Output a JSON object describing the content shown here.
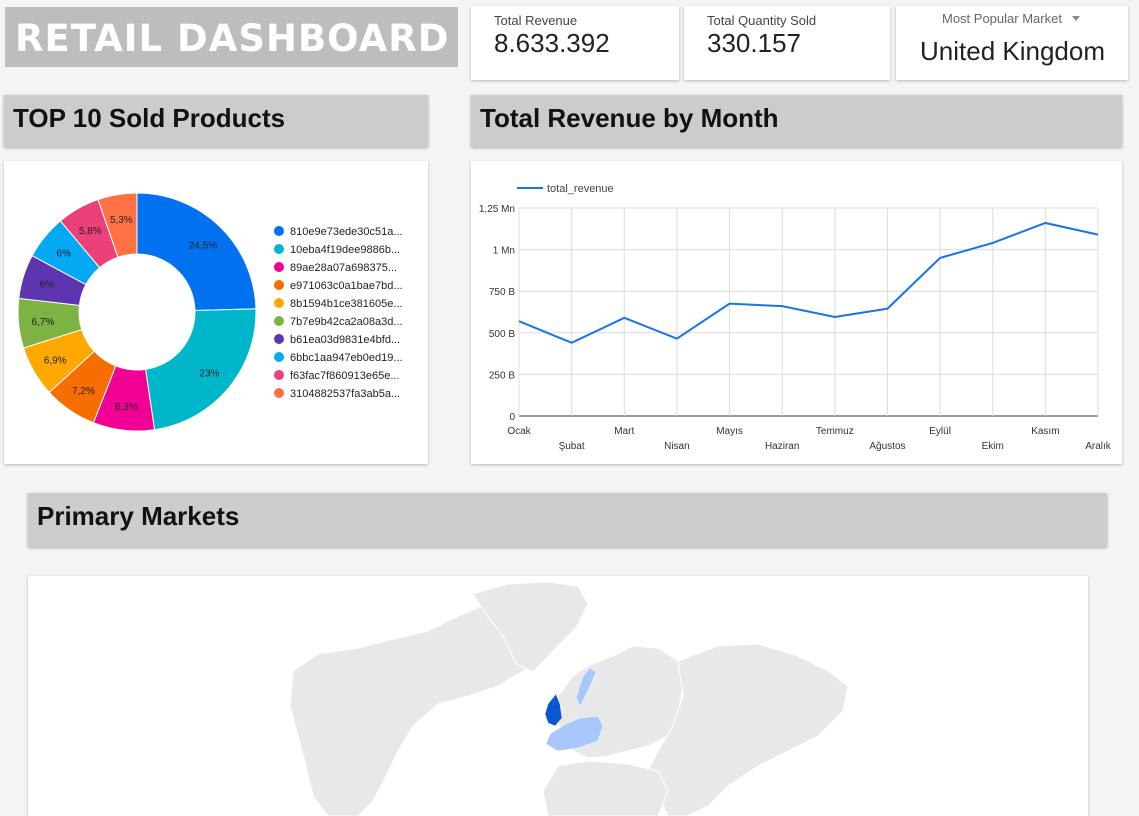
{
  "header": {
    "title": "RETAIL DASHBOARD"
  },
  "kpis": {
    "revenue": {
      "label": "Total Revenue",
      "value": "8.633.392"
    },
    "quantity": {
      "label": "Total Quantity Sold",
      "value": "330.157"
    },
    "market": {
      "label": "Most Popular Market",
      "value": "United Kingdom",
      "dropdown_icon": "triangle-down"
    }
  },
  "sections": {
    "products": "TOP 10 Sold Products",
    "revenue": "Total Revenue by Month",
    "markets": "Primary Markets"
  },
  "donut": {
    "slices": [
      {
        "label": "810e9e73ede30c51a...",
        "value": 24.5,
        "pct": "24,5%",
        "color": "#0072f0"
      },
      {
        "label": "10eba4f19dee9886b...",
        "value": 23,
        "pct": "23%",
        "color": "#00b6cb"
      },
      {
        "label": "89ae28a07a698375...",
        "value": 8.3,
        "pct": "8,3%",
        "color": "#f10096"
      },
      {
        "label": "e971063c0a1bae7bd...",
        "value": 7.2,
        "pct": "7,2%",
        "color": "#f66d00"
      },
      {
        "label": "8b1594b1ce381605e...",
        "value": 6.9,
        "pct": "6,9%",
        "color": "#ffa800"
      },
      {
        "label": "7b7e9b42ca2a08a3d...",
        "value": 6.7,
        "pct": "6,7%",
        "color": "#7cb342"
      },
      {
        "label": "b61ea03d9831e4bfd...",
        "value": 6,
        "pct": "6%",
        "color": "#5e35b1"
      },
      {
        "label": "6bbc1aa947eb0ed19...",
        "value": 6,
        "pct": "6%",
        "color": "#03a9f4"
      },
      {
        "label": "f63fac7f860913e65e...",
        "value": 5.8,
        "pct": "5,8%",
        "color": "#ec407a"
      },
      {
        "label": "3104882537fa3ab5a...",
        "value": 5.3,
        "pct": "5,3%",
        "color": "#ff7043"
      }
    ]
  },
  "chart_data": {
    "type": "line",
    "series": [
      {
        "name": "total_revenue",
        "color": "#1a73e8",
        "values": [
          570000,
          440000,
          590000,
          465000,
          675000,
          660000,
          595000,
          645000,
          950000,
          1040000,
          1160000,
          1090000
        ]
      }
    ],
    "categories": [
      "Ocak",
      "Şubat",
      "Mart",
      "Nisan",
      "Mayıs",
      "Haziran",
      "Temmuz",
      "Ağustos",
      "Eylül",
      "Ekim",
      "Kasım",
      "Aralık"
    ],
    "y_ticks": [
      {
        "value": 0,
        "label": "0"
      },
      {
        "value": 250000,
        "label": "250 B"
      },
      {
        "value": 500000,
        "label": "500 B"
      },
      {
        "value": 750000,
        "label": "750 B"
      },
      {
        "value": 1000000,
        "label": "1 Mn"
      },
      {
        "value": 1250000,
        "label": "1,25 Mn"
      }
    ],
    "ylim": [
      0,
      1250000
    ],
    "grid": true,
    "legend_position": "top-left"
  },
  "map": {
    "land_color": "#e8e8e8",
    "highlight_color": "#0b57d0",
    "secondary_color": "#a8c7fa"
  }
}
